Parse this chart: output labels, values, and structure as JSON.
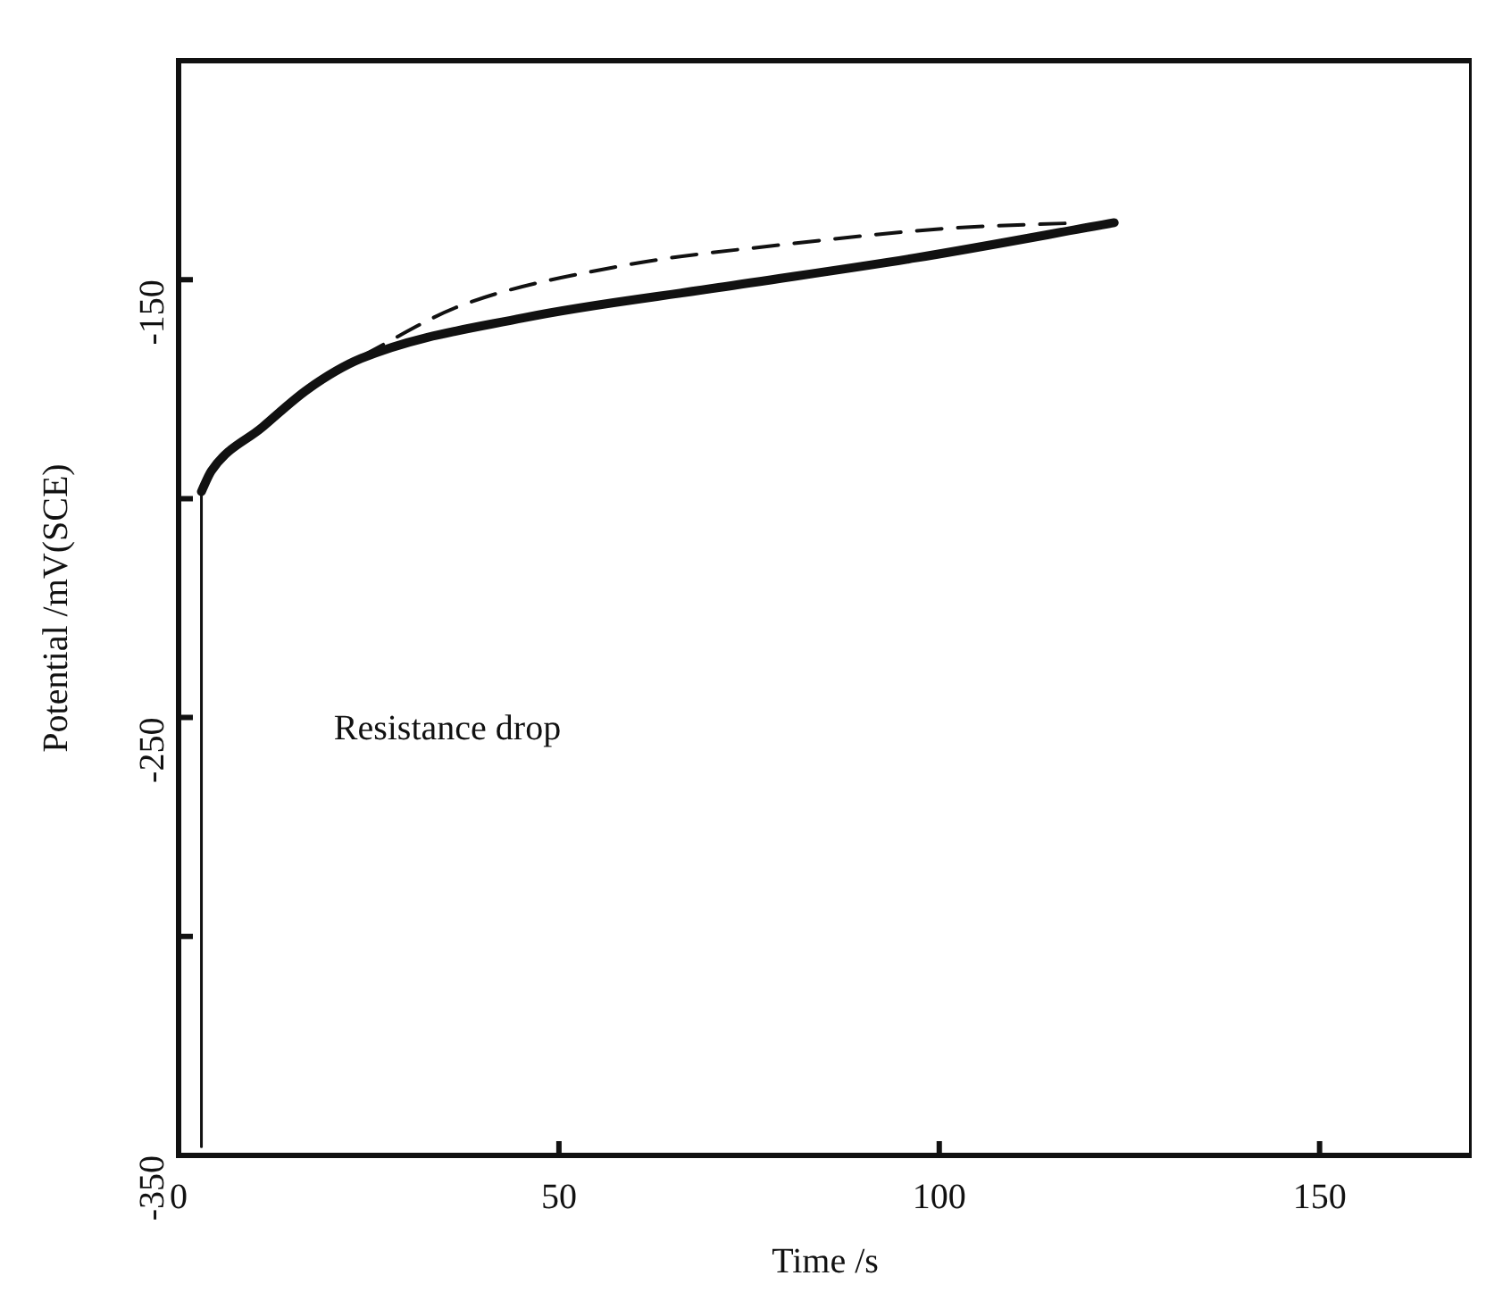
{
  "chart_data": {
    "type": "line",
    "xlabel": "Time /s",
    "ylabel": "Potential /mV(SCE)",
    "xlim": [
      0,
      170
    ],
    "ylim": [
      -350,
      -100
    ],
    "xticks": [
      0,
      50,
      100,
      150
    ],
    "yticks": [
      -350,
      {
        "value": -300,
        "label": null
      },
      -250,
      {
        "value": -200,
        "label": null
      },
      -150
    ],
    "grid": false,
    "legend": false,
    "marker": "none",
    "annotations": [
      "Resistance drop"
    ],
    "series": [
      {
        "color": "#111111",
        "line_style": "solid",
        "x": [
          3,
          3
        ],
        "values": [
          -348,
          -198.4
        ]
      },
      {
        "color": "#111111",
        "line_style": "solid",
        "x": [
          3,
          4.3,
          11,
          17,
          24,
          45.4,
          71,
          97,
          123
        ],
        "values": [
          -198.4,
          -193.7,
          -183.7,
          -175,
          -168,
          -158.7,
          -151.8,
          -145,
          -137
        ]
      },
      {
        "color": "#111111",
        "line_style": "dashed",
        "x": [
          24,
          37,
          58.4,
          80,
          101,
          118.5
        ],
        "values": [
          -167.5,
          -156,
          -146.8,
          -141.9,
          -138.3,
          -137
        ]
      }
    ]
  }
}
